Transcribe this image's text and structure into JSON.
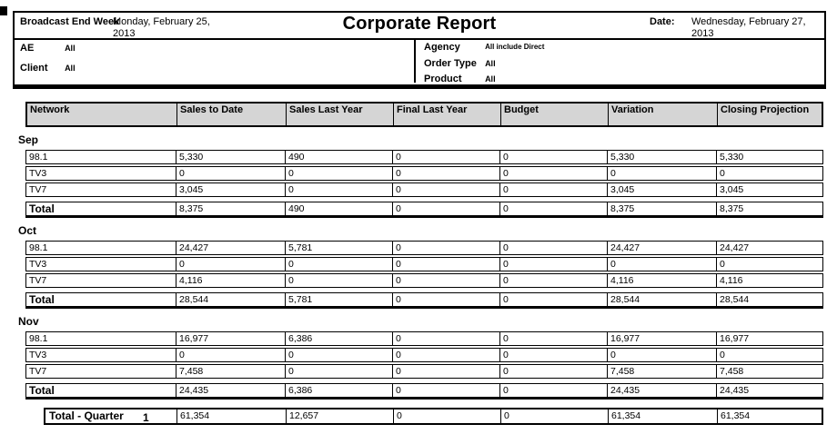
{
  "header": {
    "broadcast_end_week_label": "Broadcast End Week",
    "broadcast_end_week_value": "Monday, February 25, 2013",
    "title": "Corporate Report",
    "date_label": "Date:",
    "date_value": "Wednesday, February 27, 2013",
    "filters_left": [
      {
        "label": "AE",
        "value": "All"
      },
      {
        "label": "Client",
        "value": "All"
      }
    ],
    "filters_right": [
      {
        "label": "Agency",
        "value": "All include Direct"
      },
      {
        "label": "Order Type",
        "value": "All"
      },
      {
        "label": "Product",
        "value": "All"
      }
    ]
  },
  "table": {
    "columns": [
      "Network",
      "Sales to Date",
      "Sales Last Year",
      "Final Last Year",
      "Budget",
      "Variation",
      "Closing Projection"
    ],
    "sections": [
      {
        "month": "Sep",
        "rows": [
          {
            "network": "98.1",
            "values": [
              "5,330",
              "490",
              "0",
              "0",
              "5,330",
              "5,330"
            ]
          },
          {
            "network": "TV3",
            "values": [
              "0",
              "0",
              "0",
              "0",
              "0",
              "0"
            ]
          },
          {
            "network": "TV7",
            "values": [
              "3,045",
              "0",
              "0",
              "0",
              "3,045",
              "3,045"
            ]
          }
        ],
        "total": {
          "label": "Total",
          "values": [
            "8,375",
            "490",
            "0",
            "0",
            "8,375",
            "8,375"
          ]
        }
      },
      {
        "month": "Oct",
        "rows": [
          {
            "network": "98.1",
            "values": [
              "24,427",
              "5,781",
              "0",
              "0",
              "24,427",
              "24,427"
            ]
          },
          {
            "network": "TV3",
            "values": [
              "0",
              "0",
              "0",
              "0",
              "0",
              "0"
            ]
          },
          {
            "network": "TV7",
            "values": [
              "4,116",
              "0",
              "0",
              "0",
              "4,116",
              "4,116"
            ]
          }
        ],
        "total": {
          "label": "Total",
          "values": [
            "28,544",
            "5,781",
            "0",
            "0",
            "28,544",
            "28,544"
          ]
        }
      },
      {
        "month": "Nov",
        "rows": [
          {
            "network": "98.1",
            "values": [
              "16,977",
              "6,386",
              "0",
              "0",
              "16,977",
              "16,977"
            ]
          },
          {
            "network": "TV3",
            "values": [
              "0",
              "0",
              "0",
              "0",
              "0",
              "0"
            ]
          },
          {
            "network": "TV7",
            "values": [
              "7,458",
              "0",
              "0",
              "0",
              "7,458",
              "7,458"
            ]
          }
        ],
        "total": {
          "label": "Total",
          "values": [
            "24,435",
            "6,386",
            "0",
            "0",
            "24,435",
            "24,435"
          ]
        }
      }
    ],
    "quarter_total": {
      "label": "Total - Quarter",
      "number": "1",
      "values": [
        "61,354",
        "12,657",
        "0",
        "0",
        "61,354",
        "61,354"
      ]
    }
  },
  "colors": {
    "table_header_bg": "#d5d5d5",
    "border": "#000000",
    "page_bg": "#ffffff"
  }
}
